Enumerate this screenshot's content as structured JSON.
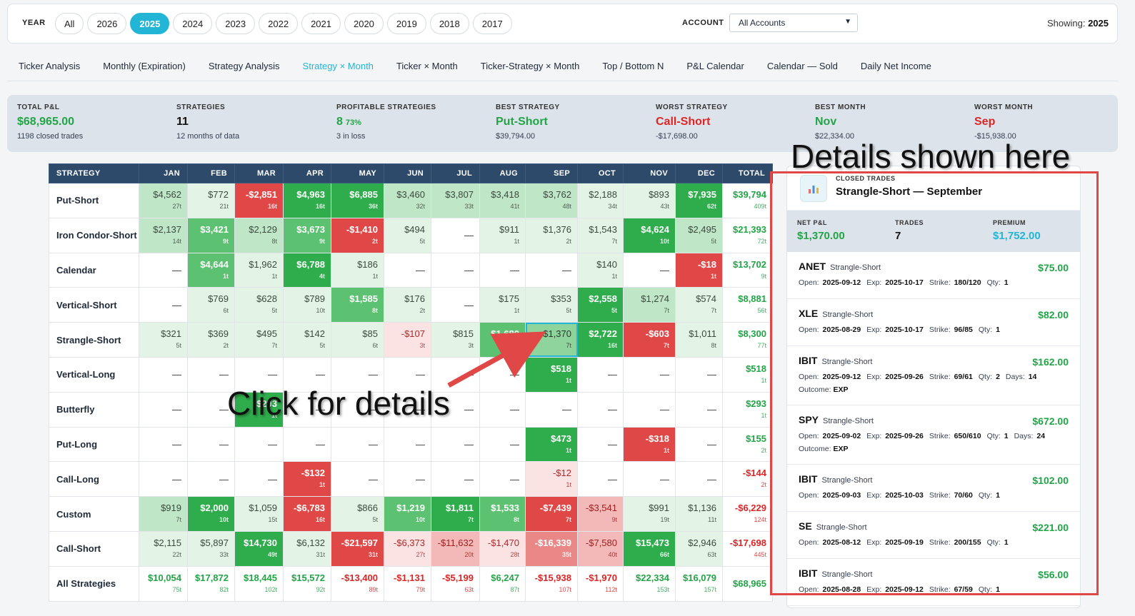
{
  "yearbar": {
    "label": "YEAR",
    "years": [
      "All",
      "2026",
      "2025",
      "2024",
      "2023",
      "2022",
      "2021",
      "2020",
      "2019",
      "2018",
      "2017"
    ],
    "active": "2025",
    "account_label": "ACCOUNT",
    "account_value": "All Accounts",
    "showing_prefix": "Showing:",
    "showing_value": "2025"
  },
  "tabs": [
    "Ticker Analysis",
    "Monthly (Expiration)",
    "Strategy Analysis",
    "Strategy × Month",
    "Ticker × Month",
    "Ticker-Strategy × Month",
    "Top / Bottom N",
    "P&L Calendar",
    "Calendar — Sold",
    "Daily Net Income"
  ],
  "active_tab": "Strategy × Month",
  "stats": [
    {
      "label": "TOTAL P&L",
      "value": "$68,965.00",
      "extra": "",
      "sub": "1198 closed trades",
      "tone": "green"
    },
    {
      "label": "STRATEGIES",
      "value": "11",
      "extra": "",
      "sub": "12 months of data",
      "tone": "dark"
    },
    {
      "label": "PROFITABLE STRATEGIES",
      "value": "8",
      "extra": "73%",
      "sub": "3 in loss",
      "tone": "green"
    },
    {
      "label": "BEST STRATEGY",
      "value": "Put-Short",
      "extra": "",
      "sub": "$39,794.00",
      "tone": "green"
    },
    {
      "label": "WORST STRATEGY",
      "value": "Call-Short",
      "extra": "",
      "sub": "-$17,698.00",
      "tone": "red"
    },
    {
      "label": "BEST MONTH",
      "value": "Nov",
      "extra": "",
      "sub": "$22,334.00",
      "tone": "green"
    },
    {
      "label": "WORST MONTH",
      "value": "Sep",
      "extra": "",
      "sub": "-$15,938.00",
      "tone": "red"
    }
  ],
  "table": {
    "headers": [
      "STRATEGY",
      "JAN",
      "FEB",
      "MAR",
      "APR",
      "MAY",
      "JUN",
      "JUL",
      "AUG",
      "SEP",
      "OCT",
      "NOV",
      "DEC",
      "TOTAL"
    ],
    "rows": [
      {
        "name": "Put-Short",
        "cells": [
          [
            "$4,562",
            "27t",
            "c2"
          ],
          [
            "$772",
            "21t",
            "c1"
          ],
          [
            "-$2,851",
            "16t",
            "n4"
          ],
          [
            "$4,963",
            "16t",
            "c5"
          ],
          [
            "$6,885",
            "36t",
            "c5"
          ],
          [
            "$3,460",
            "32t",
            "c2"
          ],
          [
            "$3,807",
            "33t",
            "c2"
          ],
          [
            "$3,418",
            "41t",
            "c2"
          ],
          [
            "$3,762",
            "48t",
            "c2"
          ],
          [
            "$2,188",
            "34t",
            "c1"
          ],
          [
            "$893",
            "43t",
            "c1"
          ],
          [
            "$7,935",
            "62t",
            "c5"
          ]
        ],
        "total": [
          "$39,794",
          "409t",
          "pos"
        ]
      },
      {
        "name": "Iron Condor-Short",
        "cells": [
          [
            "$2,137",
            "14t",
            "c2"
          ],
          [
            "$3,421",
            "9t",
            "c4"
          ],
          [
            "$2,129",
            "8t",
            "c2"
          ],
          [
            "$3,673",
            "9t",
            "c4"
          ],
          [
            "-$1,410",
            "2t",
            "n4"
          ],
          [
            "$494",
            "5t",
            "c1"
          ],
          [
            "—",
            "",
            "dash"
          ],
          [
            "$911",
            "1t",
            "c1"
          ],
          [
            "$1,376",
            "2t",
            "c1"
          ],
          [
            "$1,543",
            "7t",
            "c1"
          ],
          [
            "$4,624",
            "10t",
            "c5"
          ],
          [
            "$2,495",
            "5t",
            "c2"
          ]
        ],
        "total": [
          "$21,393",
          "72t",
          "pos"
        ]
      },
      {
        "name": "Calendar",
        "cells": [
          [
            "—",
            "",
            "dash"
          ],
          [
            "$4,644",
            "1t",
            "c4"
          ],
          [
            "$1,962",
            "1t",
            "c1"
          ],
          [
            "$6,788",
            "4t",
            "c5"
          ],
          [
            "$186",
            "1t",
            "c1"
          ],
          [
            "—",
            "",
            "dash"
          ],
          [
            "—",
            "",
            "dash"
          ],
          [
            "—",
            "",
            "dash"
          ],
          [
            "—",
            "",
            "dash"
          ],
          [
            "$140",
            "1t",
            "c1"
          ],
          [
            "—",
            "",
            "dash"
          ],
          [
            "-$18",
            "1t",
            "n4"
          ]
        ],
        "total": [
          "$13,702",
          "9t",
          "pos"
        ]
      },
      {
        "name": "Vertical-Short",
        "cells": [
          [
            "—",
            "",
            "dash"
          ],
          [
            "$769",
            "6t",
            "c1"
          ],
          [
            "$628",
            "5t",
            "c1"
          ],
          [
            "$789",
            "10t",
            "c1"
          ],
          [
            "$1,585",
            "8t",
            "c4"
          ],
          [
            "$176",
            "2t",
            "c1"
          ],
          [
            "—",
            "",
            "dash"
          ],
          [
            "$175",
            "1t",
            "c1"
          ],
          [
            "$353",
            "5t",
            "c1"
          ],
          [
            "$2,558",
            "5t",
            "c5"
          ],
          [
            "$1,274",
            "7t",
            "c2"
          ],
          [
            "$574",
            "7t",
            "c1"
          ]
        ],
        "total": [
          "$8,881",
          "56t",
          "pos"
        ]
      },
      {
        "name": "Strangle-Short",
        "cells": [
          [
            "$321",
            "5t",
            "c1"
          ],
          [
            "$369",
            "2t",
            "c1"
          ],
          [
            "$495",
            "7t",
            "c1"
          ],
          [
            "$142",
            "5t",
            "c1"
          ],
          [
            "$85",
            "6t",
            "c1"
          ],
          [
            "-$107",
            "3t",
            "n1"
          ],
          [
            "$815",
            "3t",
            "c1"
          ],
          [
            "$1,680",
            "3t",
            "c4"
          ],
          [
            "$1,370",
            "7t",
            "c3 sel"
          ],
          [
            "$2,722",
            "16t",
            "c5"
          ],
          [
            "-$603",
            "7t",
            "n4"
          ],
          [
            "$1,011",
            "8t",
            "c1"
          ]
        ],
        "total": [
          "$8,300",
          "77t",
          "pos"
        ]
      },
      {
        "name": "Vertical-Long",
        "cells": [
          [
            "—",
            "",
            "dash"
          ],
          [
            "—",
            "",
            "dash"
          ],
          [
            "—",
            "",
            "dash"
          ],
          [
            "—",
            "",
            "dash"
          ],
          [
            "—",
            "",
            "dash"
          ],
          [
            "—",
            "",
            "dash"
          ],
          [
            "—",
            "",
            "dash"
          ],
          [
            "—",
            "",
            "dash"
          ],
          [
            "$518",
            "1t",
            "c5"
          ],
          [
            "—",
            "",
            "dash"
          ],
          [
            "—",
            "",
            "dash"
          ],
          [
            "—",
            "",
            "dash"
          ]
        ],
        "total": [
          "$518",
          "1t",
          "pos"
        ]
      },
      {
        "name": "Butterfly",
        "cells": [
          [
            "—",
            "",
            "dash"
          ],
          [
            "—",
            "",
            "dash"
          ],
          [
            "$293",
            "1t",
            "c5"
          ],
          [
            "—",
            "",
            "dash"
          ],
          [
            "—",
            "",
            "dash"
          ],
          [
            "—",
            "",
            "dash"
          ],
          [
            "—",
            "",
            "dash"
          ],
          [
            "—",
            "",
            "dash"
          ],
          [
            "—",
            "",
            "dash"
          ],
          [
            "—",
            "",
            "dash"
          ],
          [
            "—",
            "",
            "dash"
          ],
          [
            "—",
            "",
            "dash"
          ]
        ],
        "total": [
          "$293",
          "1t",
          "pos"
        ]
      },
      {
        "name": "Put-Long",
        "cells": [
          [
            "—",
            "",
            "dash"
          ],
          [
            "—",
            "",
            "dash"
          ],
          [
            "—",
            "",
            "dash"
          ],
          [
            "—",
            "",
            "dash"
          ],
          [
            "—",
            "",
            "dash"
          ],
          [
            "—",
            "",
            "dash"
          ],
          [
            "—",
            "",
            "dash"
          ],
          [
            "—",
            "",
            "dash"
          ],
          [
            "$473",
            "1t",
            "c5"
          ],
          [
            "—",
            "",
            "dash"
          ],
          [
            "-$318",
            "1t",
            "n4"
          ],
          [
            "—",
            "",
            "dash"
          ]
        ],
        "total": [
          "$155",
          "2t",
          "pos"
        ]
      },
      {
        "name": "Call-Long",
        "cells": [
          [
            "—",
            "",
            "dash"
          ],
          [
            "—",
            "",
            "dash"
          ],
          [
            "—",
            "",
            "dash"
          ],
          [
            "-$132",
            "1t",
            "n4"
          ],
          [
            "—",
            "",
            "dash"
          ],
          [
            "—",
            "",
            "dash"
          ],
          [
            "—",
            "",
            "dash"
          ],
          [
            "—",
            "",
            "dash"
          ],
          [
            "-$12",
            "1t",
            "n1"
          ],
          [
            "—",
            "",
            "dash"
          ],
          [
            "—",
            "",
            "dash"
          ],
          [
            "—",
            "",
            "dash"
          ]
        ],
        "total": [
          "-$144",
          "2t",
          "neg"
        ]
      },
      {
        "name": "Custom",
        "cells": [
          [
            "$919",
            "7t",
            "c2"
          ],
          [
            "$2,000",
            "10t",
            "c5"
          ],
          [
            "$1,059",
            "15t",
            "c1"
          ],
          [
            "-$6,783",
            "16t",
            "n4"
          ],
          [
            "$866",
            "5t",
            "c1"
          ],
          [
            "$1,219",
            "10t",
            "c4"
          ],
          [
            "$1,811",
            "7t",
            "c5"
          ],
          [
            "$1,533",
            "8t",
            "c4"
          ],
          [
            "-$7,439",
            "7t",
            "n4"
          ],
          [
            "-$3,541",
            "9t",
            "n2"
          ],
          [
            "$991",
            "19t",
            "c1"
          ],
          [
            "$1,136",
            "11t",
            "c1"
          ]
        ],
        "total": [
          "-$6,229",
          "124t",
          "neg"
        ]
      },
      {
        "name": "Call-Short",
        "cells": [
          [
            "$2,115",
            "22t",
            "c1"
          ],
          [
            "$5,897",
            "33t",
            "c1"
          ],
          [
            "$14,730",
            "49t",
            "c5"
          ],
          [
            "$6,132",
            "31t",
            "c1"
          ],
          [
            "-$21,597",
            "31t",
            "n4"
          ],
          [
            "-$6,373",
            "27t",
            "n1"
          ],
          [
            "-$11,632",
            "20t",
            "n2"
          ],
          [
            "-$1,470",
            "28t",
            "n1"
          ],
          [
            "-$16,339",
            "35t",
            "n3"
          ],
          [
            "-$7,580",
            "40t",
            "n2"
          ],
          [
            "$15,473",
            "66t",
            "c5"
          ],
          [
            "$2,946",
            "63t",
            "c1"
          ]
        ],
        "total": [
          "-$17,698",
          "445t",
          "neg"
        ]
      }
    ],
    "footer": {
      "name": "All Strategies",
      "cells": [
        [
          "$10,054",
          "75t",
          "pos"
        ],
        [
          "$17,872",
          "82t",
          "pos"
        ],
        [
          "$18,445",
          "102t",
          "pos"
        ],
        [
          "$15,572",
          "92t",
          "pos"
        ],
        [
          "-$13,400",
          "89t",
          "neg"
        ],
        [
          "-$1,131",
          "79t",
          "neg"
        ],
        [
          "-$5,199",
          "63t",
          "neg"
        ],
        [
          "$6,247",
          "87t",
          "pos"
        ],
        [
          "-$15,938",
          "107t",
          "neg"
        ],
        [
          "-$1,970",
          "112t",
          "neg"
        ],
        [
          "$22,334",
          "153t",
          "pos"
        ],
        [
          "$16,079",
          "157t",
          "pos"
        ]
      ],
      "total": [
        "$68,965",
        "",
        "pos"
      ]
    }
  },
  "panel": {
    "kicker": "CLOSED TRADES",
    "title": "Strangle-Short — September",
    "net_label": "NET P&L",
    "net_value": "$1,370.00",
    "trades_label": "TRADES",
    "trades_value": "7",
    "premium_label": "PREMIUM",
    "premium_value": "$1,752.00",
    "trades": [
      {
        "ticker": "ANET",
        "strategy": "Strangle-Short",
        "amount": "$75.00",
        "open": "2025-09-12",
        "exp": "2025-10-17",
        "strike": "180/120",
        "qty": "1",
        "days": "",
        "outcome": ""
      },
      {
        "ticker": "XLE",
        "strategy": "Strangle-Short",
        "amount": "$82.00",
        "open": "2025-08-29",
        "exp": "2025-10-17",
        "strike": "96/85",
        "qty": "1",
        "days": "",
        "outcome": ""
      },
      {
        "ticker": "IBIT",
        "strategy": "Strangle-Short",
        "amount": "$162.00",
        "open": "2025-09-12",
        "exp": "2025-09-26",
        "strike": "69/61",
        "qty": "2",
        "days": "14",
        "outcome": "EXP"
      },
      {
        "ticker": "SPY",
        "strategy": "Strangle-Short",
        "amount": "$672.00",
        "open": "2025-09-02",
        "exp": "2025-09-26",
        "strike": "650/610",
        "qty": "1",
        "days": "24",
        "outcome": "EXP"
      },
      {
        "ticker": "IBIT",
        "strategy": "Strangle-Short",
        "amount": "$102.00",
        "open": "2025-09-03",
        "exp": "2025-10-03",
        "strike": "70/60",
        "qty": "1",
        "days": "",
        "outcome": ""
      },
      {
        "ticker": "SE",
        "strategy": "Strangle-Short",
        "amount": "$221.00",
        "open": "2025-08-12",
        "exp": "2025-09-19",
        "strike": "200/155",
        "qty": "1",
        "days": "",
        "outcome": ""
      },
      {
        "ticker": "IBIT",
        "strategy": "Strangle-Short",
        "amount": "$56.00",
        "open": "2025-08-28",
        "exp": "2025-09-12",
        "strike": "67/59",
        "qty": "1",
        "days": "",
        "outcome": ""
      }
    ],
    "labels": {
      "open": "Open:",
      "exp": "Exp:",
      "strike": "Strike:",
      "qty": "Qty:",
      "days": "Days:",
      "outcome": "Outcome:"
    }
  },
  "annotations": {
    "details": "Details shown here",
    "click": "Click for details"
  }
}
